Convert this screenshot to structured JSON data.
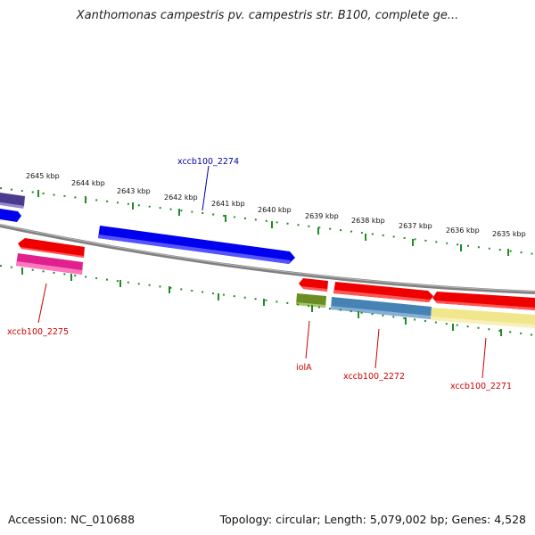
{
  "title": "Xanthomonas campestris pv. campestris str. B100, complete ge...",
  "footer": {
    "accession": "Accession: NC_010688",
    "summary": "Topology: circular; Length: 5,079,002 bp; Genes: 4,528"
  },
  "ticks": [
    "2645 kbp",
    "2644 kbp",
    "2643 kbp",
    "2642 kbp",
    "2641 kbp",
    "2640 kbp",
    "2639 kbp",
    "2638 kbp",
    "2637 kbp",
    "2636 kbp",
    "2635 kbp"
  ],
  "genes": {
    "xccb100_2274": "xccb100_2274",
    "xccb100_2275": "xccb100_2275",
    "iolA": "iolA",
    "xccb100_2272": "xccb100_2272",
    "xccb100_2271": "xccb100_2271"
  },
  "colors": {
    "forward_label": "#0000aa",
    "reverse_label": "#cc0000",
    "backbone": "#808080",
    "tick": "#228b22"
  }
}
